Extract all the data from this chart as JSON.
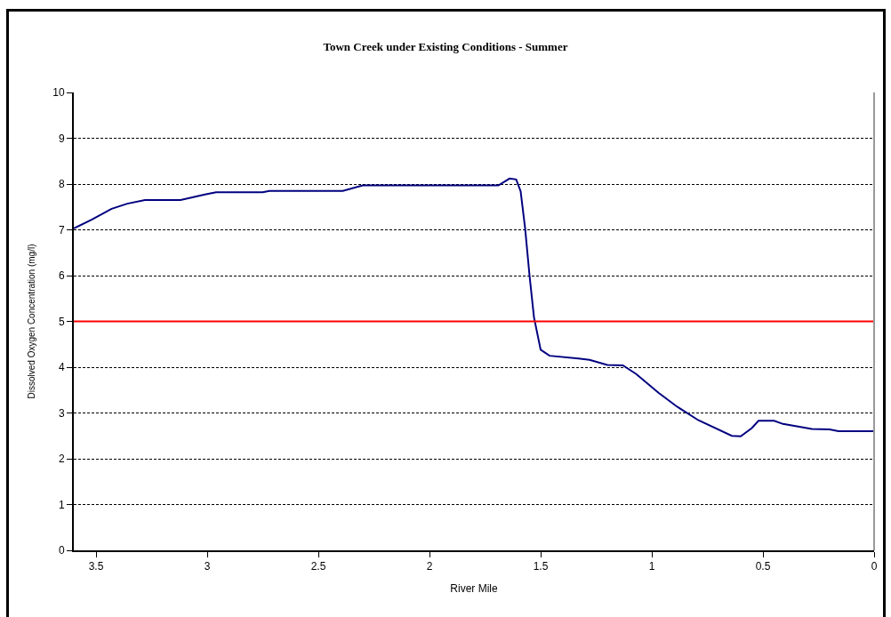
{
  "chart_data": {
    "type": "line",
    "title": "Town Creek under Existing Conditions - Summer",
    "xlabel": "River Mile",
    "ylabel": "Dissolved Oxygen Concentration (mg/l)",
    "x": [
      3.6,
      3.52,
      3.43,
      3.36,
      3.28,
      3.12,
      3.01,
      2.96,
      2.75,
      2.72,
      2.39,
      2.3,
      1.69,
      1.64,
      1.61,
      1.59,
      1.57,
      1.55,
      1.53,
      1.5,
      1.46,
      1.33,
      1.28,
      1.2,
      1.13,
      1.07,
      0.97,
      0.89,
      0.79,
      0.64,
      0.6,
      0.55,
      0.52,
      0.45,
      0.41,
      0.28,
      0.2,
      0.16,
      0
    ],
    "series": [
      {
        "color": "#000080",
        "values": [
          7.03,
          7.22,
          7.46,
          7.57,
          7.65,
          7.65,
          7.77,
          7.82,
          7.82,
          7.85,
          7.85,
          7.97,
          7.97,
          8.12,
          8.1,
          7.84,
          7.04,
          6.0,
          5.09,
          4.38,
          4.25,
          4.19,
          4.16,
          4.05,
          4.04,
          3.85,
          3.44,
          3.15,
          2.84,
          2.5,
          2.49,
          2.67,
          2.83,
          2.83,
          2.76,
          2.65,
          2.64,
          2.6,
          2.6
        ]
      }
    ],
    "xlim": [
      3.6,
      0
    ],
    "xticks": [
      3.5,
      3,
      2.5,
      2,
      1.5,
      1,
      0.5,
      0
    ],
    "ylim": [
      0,
      10
    ],
    "yticks": [
      0,
      1,
      2,
      3,
      4,
      5,
      6,
      7,
      8,
      9,
      10
    ],
    "grid": "y",
    "marker": "none",
    "line_style": "solid",
    "ref_lines": [
      {
        "axis": "y",
        "value": 5,
        "color": "#ff0000"
      }
    ]
  }
}
